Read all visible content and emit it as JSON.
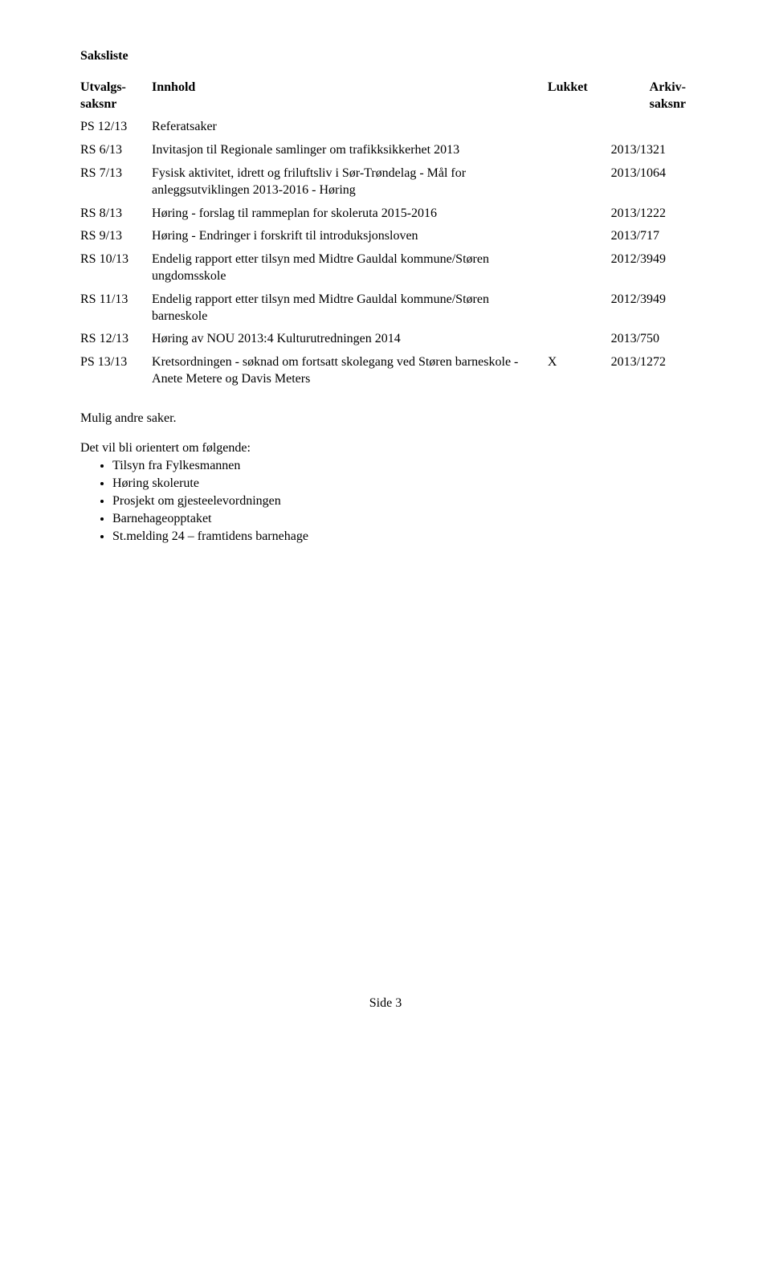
{
  "title": "Saksliste",
  "headers": {
    "utvalg_top": "Utvalgs-",
    "utvalg_bottom": "saksnr",
    "innhold": "Innhold",
    "lukket": "Lukket",
    "arkiv_top": "Arkiv-",
    "arkiv_bottom": "saksnr"
  },
  "rows": [
    {
      "utvalg": "PS 12/13",
      "innhold": "Referatsaker",
      "lukket": "",
      "arkiv": ""
    },
    {
      "utvalg": "RS 6/13",
      "innhold": "Invitasjon til Regionale samlinger om trafikksikkerhet 2013",
      "lukket": "",
      "arkiv": "2013/1321"
    },
    {
      "utvalg": "RS 7/13",
      "innhold": "Fysisk aktivitet, idrett og friluftsliv i Sør-Trøndelag - Mål for anleggsutviklingen 2013-2016 - Høring",
      "lukket": "",
      "arkiv": "2013/1064"
    },
    {
      "utvalg": "RS 8/13",
      "innhold": "Høring - forslag til rammeplan for skoleruta 2015-2016",
      "lukket": "",
      "arkiv": "2013/1222"
    },
    {
      "utvalg": "RS 9/13",
      "innhold": "Høring - Endringer i forskrift til introduksjonsloven",
      "lukket": "",
      "arkiv": "2013/717"
    },
    {
      "utvalg": "RS 10/13",
      "innhold": "Endelig rapport etter tilsyn med Midtre Gauldal kommune/Støren ungdomsskole",
      "lukket": "",
      "arkiv": "2012/3949"
    },
    {
      "utvalg": "RS 11/13",
      "innhold": "Endelig rapport etter tilsyn med Midtre Gauldal kommune/Støren barneskole",
      "lukket": "",
      "arkiv": "2012/3949"
    },
    {
      "utvalg": "RS 12/13",
      "innhold": "Høring av NOU 2013:4 Kulturutredningen 2014",
      "lukket": "",
      "arkiv": "2013/750"
    },
    {
      "utvalg": "PS 13/13",
      "innhold": "Kretsordningen - søknad om fortsatt skolegang ved Støren barneskole - Anete Metere og Davis Meters",
      "lukket": "X",
      "arkiv": "2013/1272"
    }
  ],
  "mulig": "Mulig andre saker.",
  "orientering_title": "Det vil bli orientert om følgende:",
  "bullets": [
    "Tilsyn fra Fylkesmannen",
    "Høring skolerute",
    "Prosjekt om gjesteelevordningen",
    "Barnehageopptaket",
    "St.melding 24 – framtidens barnehage"
  ],
  "footer": "Side 3"
}
